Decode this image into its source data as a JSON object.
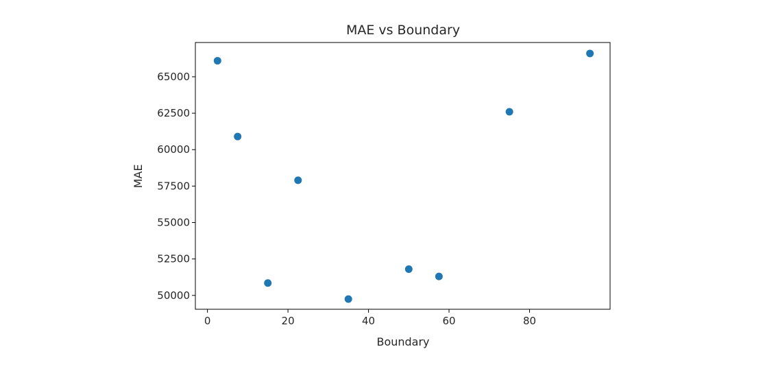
{
  "chart_data": {
    "type": "scatter",
    "title": "MAE vs Boundary",
    "xlabel": "Boundary",
    "ylabel": "MAE",
    "xlim": [
      -3,
      100
    ],
    "ylim": [
      49050,
      67350
    ],
    "x_ticks": [
      0,
      20,
      40,
      60,
      80
    ],
    "y_ticks": [
      50000,
      52500,
      55000,
      57500,
      60000,
      62500,
      65000
    ],
    "grid": false,
    "marker_color": "#1f77b4",
    "points": [
      {
        "x": 2.5,
        "y": 66100
      },
      {
        "x": 7.5,
        "y": 60900
      },
      {
        "x": 15,
        "y": 50850
      },
      {
        "x": 22.5,
        "y": 57900
      },
      {
        "x": 35,
        "y": 49750
      },
      {
        "x": 50,
        "y": 51800
      },
      {
        "x": 57.5,
        "y": 51300
      },
      {
        "x": 75,
        "y": 62600
      },
      {
        "x": 95,
        "y": 66600
      }
    ]
  }
}
